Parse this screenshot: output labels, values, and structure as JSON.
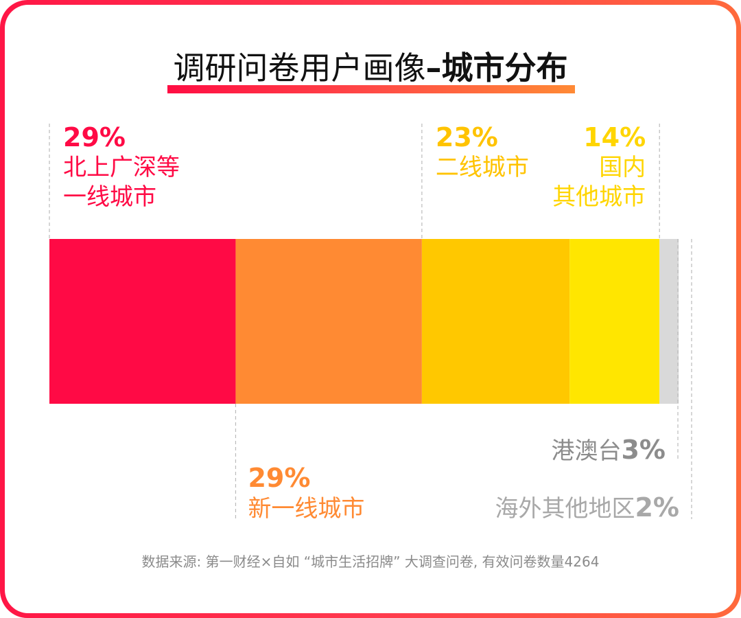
{
  "title": {
    "normal": "调研问卷用户画像",
    "bold": "–城市分布"
  },
  "chart_data": {
    "type": "bar",
    "orientation": "horizontal-stacked",
    "unit": "%",
    "segments": [
      {
        "name": "北上广深等一线城市",
        "label_lines": [
          "北上广深等",
          "一线城市"
        ],
        "value": 29,
        "pct_label": "29%",
        "color": "#ff0a45",
        "label_color": "#ff0a45",
        "label_side": "top",
        "align": "start"
      },
      {
        "name": "新一线城市",
        "label_lines": [
          "新一线城市"
        ],
        "value": 29,
        "pct_label": "29%",
        "color": "#ff8a33",
        "label_color": "#ff8a33",
        "label_side": "bottom",
        "align": "start"
      },
      {
        "name": "二线城市",
        "label_lines": [
          "二线城市"
        ],
        "value": 23,
        "pct_label": "23%",
        "color": "#ffc800",
        "label_color": "#ffc300",
        "label_side": "top",
        "align": "start"
      },
      {
        "name": "国内其他城市",
        "label_lines": [
          "国内",
          "其他城市"
        ],
        "value": 14,
        "pct_label": "14%",
        "color": "#ffe600",
        "label_color": "#ffd500",
        "label_side": "top",
        "align": "end"
      },
      {
        "name": "港澳台",
        "label_lines": [
          "港澳台"
        ],
        "value": 3,
        "pct_label": "3%",
        "color": "#d9d9d9",
        "label_color": "#8c8c8c",
        "label_side": "bottom",
        "align": "end",
        "inline": true
      },
      {
        "name": "海外其他地区",
        "label_lines": [
          "海外其他地区"
        ],
        "value": 2,
        "pct_label": "2%",
        "color": "#ffffff",
        "label_color": "#a8a8a8",
        "label_side": "bottom",
        "align": "end",
        "inline": true
      }
    ]
  },
  "source": "数据来源: 第一财经×自如 “城市生活招牌” 大调查问卷, 有效问卷数量4264"
}
